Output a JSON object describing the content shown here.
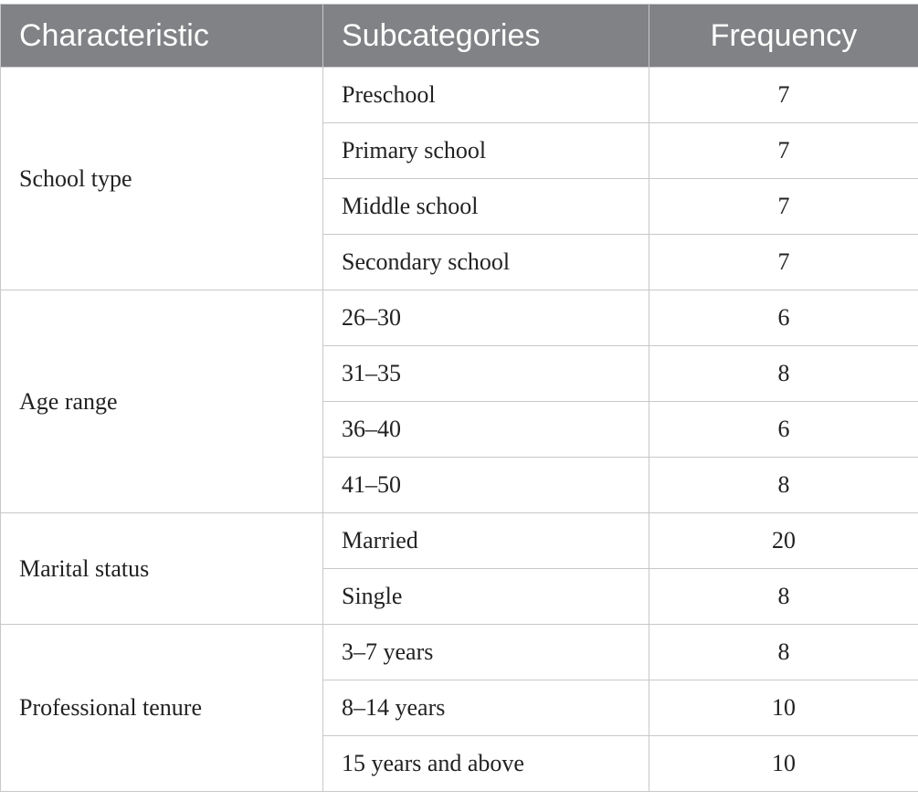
{
  "table": {
    "header": [
      "Characteristic",
      "Subcategories",
      "Frequency"
    ],
    "groups": [
      {
        "characteristic": "School type",
        "rows": [
          [
            "Preschool",
            7
          ],
          [
            "Primary school",
            7
          ],
          [
            "Middle school",
            7
          ],
          [
            "Secondary school",
            7
          ]
        ]
      },
      {
        "characteristic": "Age range",
        "rows": [
          [
            "26–30",
            6
          ],
          [
            "31–35",
            8
          ],
          [
            "36–40",
            6
          ],
          [
            "41–50",
            8
          ]
        ]
      },
      {
        "characteristic": "Marital status",
        "rows": [
          [
            "Married",
            20
          ],
          [
            "Single",
            8
          ]
        ]
      },
      {
        "characteristic": "Professional tenure",
        "rows": [
          [
            "3–7 years",
            8
          ],
          [
            "8–14 years",
            10
          ],
          [
            "15 years and above",
            10
          ]
        ]
      }
    ]
  }
}
